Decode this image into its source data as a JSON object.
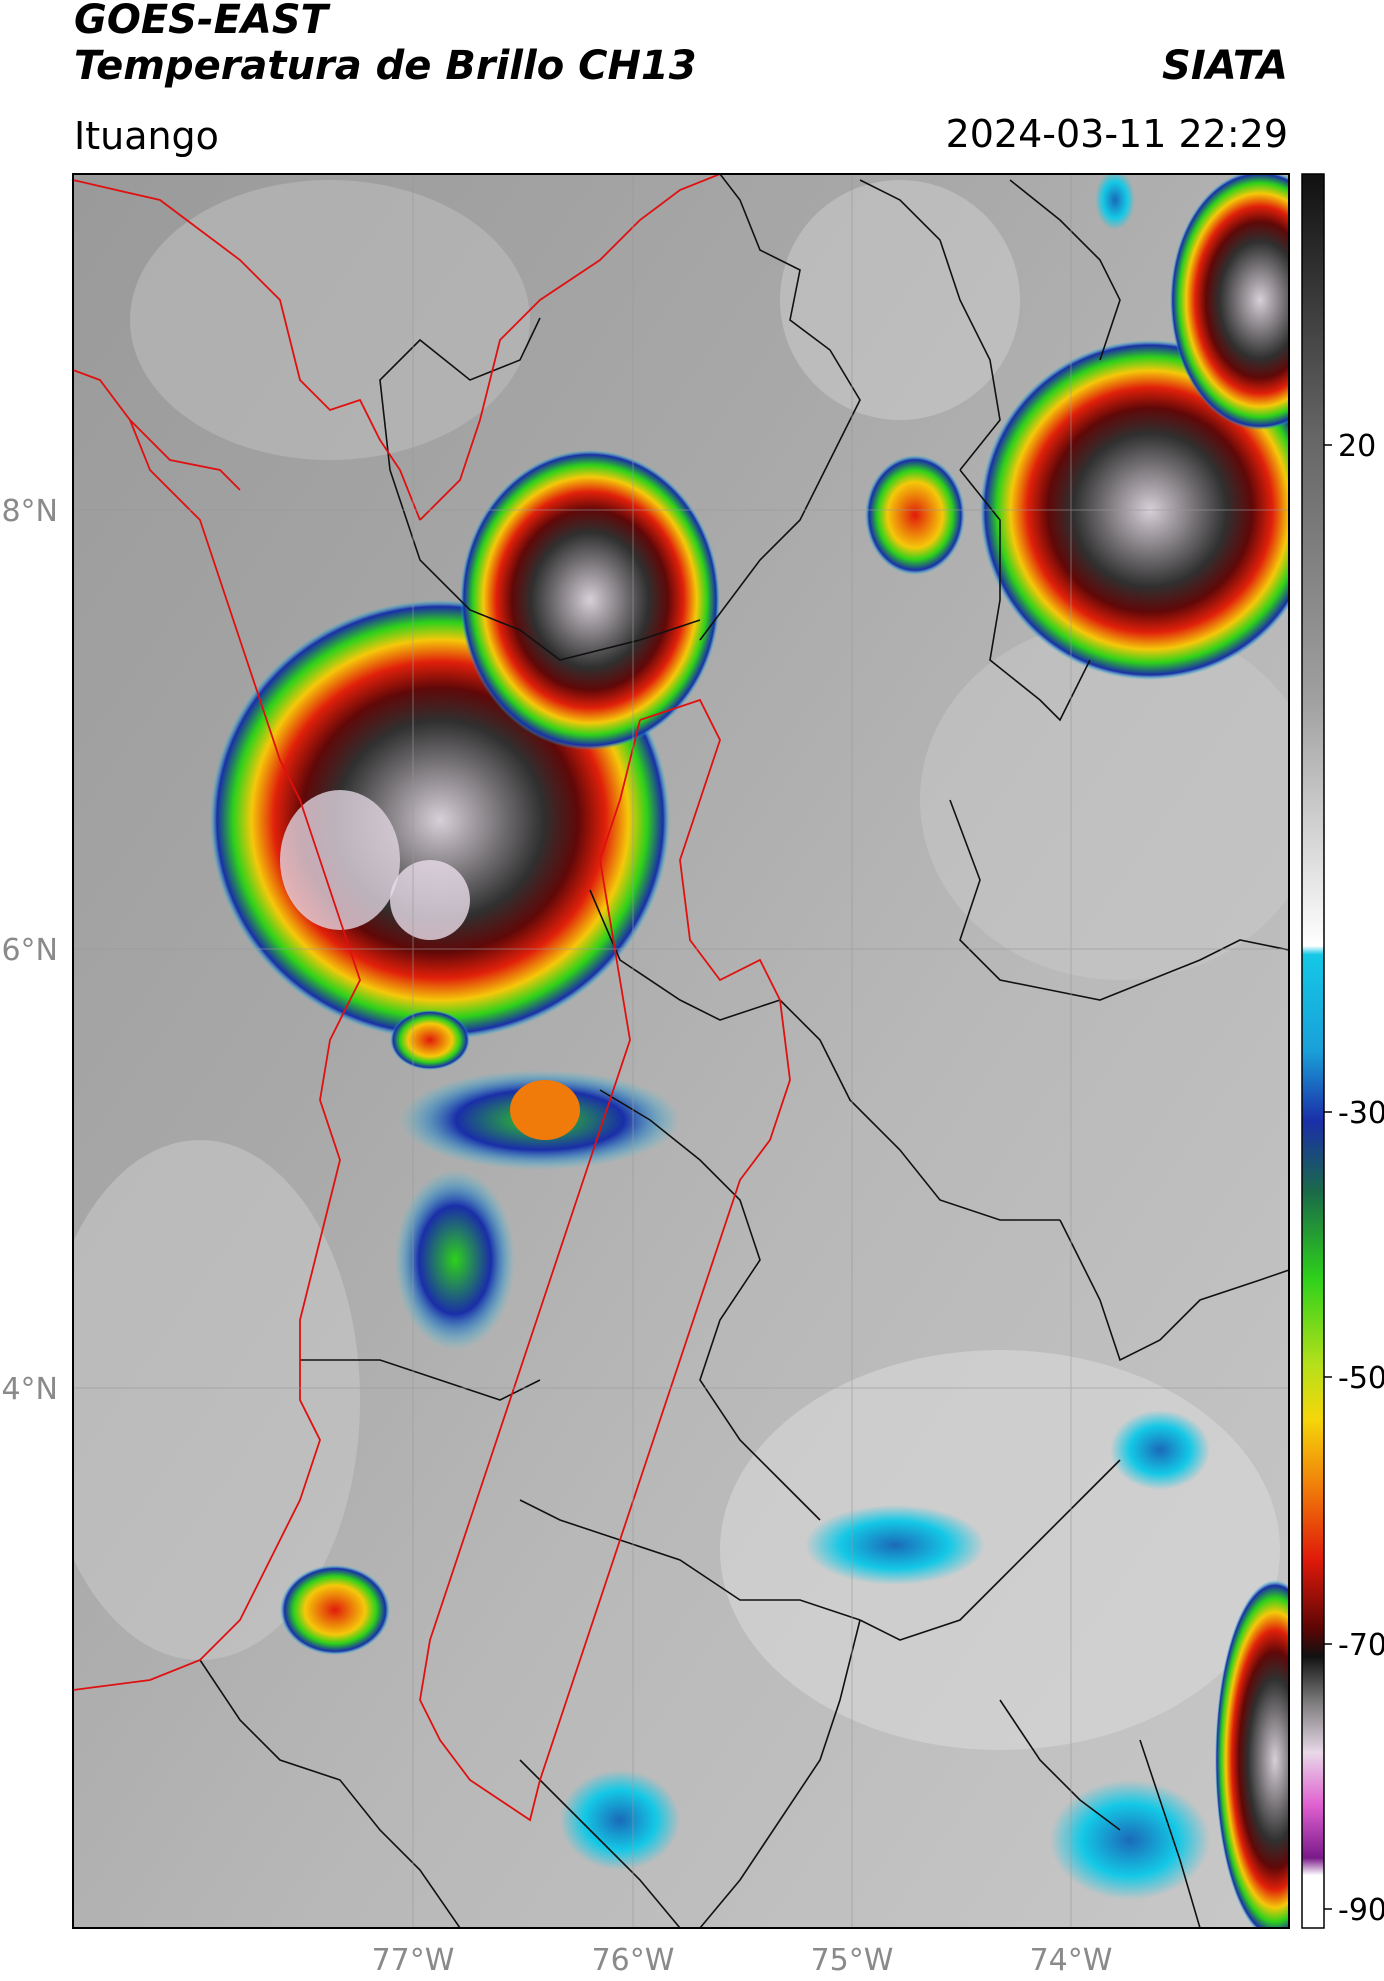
{
  "header": {
    "line1": "GOES-EAST",
    "line2": "Temperatura de Brillo CH13",
    "brand": "SIATA",
    "place": "Ituango",
    "timestamp": "2024-03-11 22:29"
  },
  "map": {
    "lon_labels": [
      "77°W",
      "76°W",
      "75°W",
      "74°W"
    ],
    "lat_labels": [
      "8°N",
      "6°N",
      "4°N"
    ]
  },
  "colorbar": {
    "ticks": [
      "20",
      "-30",
      "-50",
      "-70",
      "-90"
    ],
    "colors": {
      "dark": "#111111",
      "gray": "#8c8c8c",
      "light": "#f2f2f2",
      "cyan": "#14c8e6",
      "blue": "#1a2ea8",
      "green": "#2ed11a",
      "yellow": "#f5d60a",
      "red": "#e01a0a",
      "darkred": "#5a0505",
      "magenta": "#d040c8",
      "purple": "#7a1a8a"
    }
  }
}
